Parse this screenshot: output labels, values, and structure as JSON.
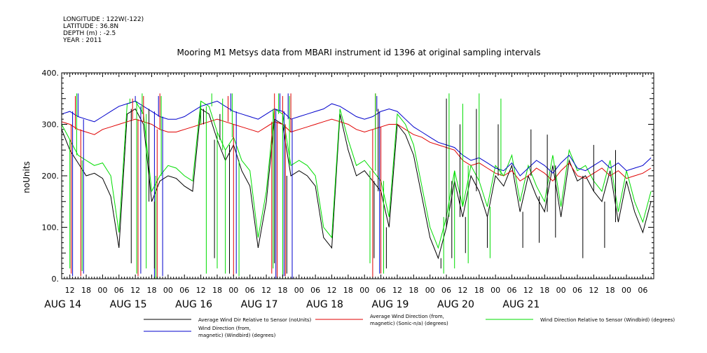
{
  "header": {
    "lines": [
      "LONGITUDE : 122W(-122)",
      "LATITUDE : 36.8N",
      "DEPTH (m) : -2.5",
      "YEAR : 2011"
    ]
  },
  "chart_data": {
    "type": "line",
    "title": "Mooring M1 Metsys data from MBARI instrument id 1396 at original sampling intervals",
    "ylabel": "noUnits",
    "xlabel": "",
    "ylim": [
      0,
      400
    ],
    "y_ticks": [
      0,
      100,
      200,
      300,
      400
    ],
    "y_tick_labels": [
      "0.",
      "100.",
      "200.",
      "300.",
      "400."
    ],
    "x_unit": "hours since 2011-08-14 00:00",
    "xlim": [
      9,
      226
    ],
    "hour_ticks": [
      {
        "h": 12,
        "label": "12"
      },
      {
        "h": 18,
        "label": "18"
      },
      {
        "h": 24,
        "label": "00"
      },
      {
        "h": 30,
        "label": "06"
      },
      {
        "h": 36,
        "label": "12"
      },
      {
        "h": 42,
        "label": "18"
      },
      {
        "h": 48,
        "label": "00"
      },
      {
        "h": 54,
        "label": "06"
      },
      {
        "h": 60,
        "label": "12"
      },
      {
        "h": 66,
        "label": "18"
      },
      {
        "h": 72,
        "label": "00"
      },
      {
        "h": 78,
        "label": "06"
      },
      {
        "h": 84,
        "label": "12"
      },
      {
        "h": 90,
        "label": "18"
      },
      {
        "h": 96,
        "label": "00"
      },
      {
        "h": 102,
        "label": "06"
      },
      {
        "h": 108,
        "label": "12"
      },
      {
        "h": 114,
        "label": "18"
      },
      {
        "h": 120,
        "label": "00"
      },
      {
        "h": 126,
        "label": "06"
      },
      {
        "h": 132,
        "label": "12"
      },
      {
        "h": 138,
        "label": "18"
      },
      {
        "h": 144,
        "label": "00"
      },
      {
        "h": 150,
        "label": "06"
      },
      {
        "h": 156,
        "label": "12"
      },
      {
        "h": 162,
        "label": "18"
      },
      {
        "h": 168,
        "label": "00"
      },
      {
        "h": 174,
        "label": "06"
      },
      {
        "h": 180,
        "label": "12"
      },
      {
        "h": 186,
        "label": "18"
      },
      {
        "h": 192,
        "label": "00"
      },
      {
        "h": 198,
        "label": "06"
      },
      {
        "h": 204,
        "label": "12"
      },
      {
        "h": 210,
        "label": "18"
      },
      {
        "h": 216,
        "label": "00"
      },
      {
        "h": 222,
        "label": "06"
      }
    ],
    "day_labels": [
      {
        "h": 12,
        "label": "AUG 14"
      },
      {
        "h": 36,
        "label": "AUG 15"
      },
      {
        "h": 60,
        "label": "AUG 16"
      },
      {
        "h": 84,
        "label": "AUG 17"
      },
      {
        "h": 108,
        "label": "AUG 18"
      },
      {
        "h": 132,
        "label": "AUG 19"
      },
      {
        "h": 156,
        "label": "AUG 20"
      },
      {
        "h": 180,
        "label": "AUG 21"
      }
    ],
    "series": [
      {
        "name": "Average Wind Dir Relative to Sensor (noUnits)",
        "color": "#000000",
        "x": [
          9,
          12,
          15,
          18,
          21,
          24,
          27,
          30,
          33,
          36,
          39,
          42,
          45,
          48,
          51,
          54,
          57,
          60,
          63,
          66,
          69,
          72,
          75,
          78,
          81,
          84,
          87,
          90,
          93,
          96,
          99,
          102,
          105,
          108,
          111,
          114,
          117,
          120,
          123,
          126,
          129,
          132,
          135,
          138,
          141,
          144,
          147,
          150,
          153,
          156,
          159,
          162,
          165,
          168,
          171,
          174,
          177,
          180,
          183,
          186,
          189,
          192,
          195,
          198,
          201,
          204,
          207,
          210,
          213,
          216,
          219,
          222,
          225
        ],
        "values": [
          290,
          250,
          225,
          200,
          205,
          195,
          160,
          60,
          320,
          330,
          300,
          150,
          190,
          200,
          195,
          180,
          170,
          330,
          320,
          270,
          230,
          260,
          210,
          180,
          60,
          150,
          310,
          300,
          200,
          210,
          200,
          180,
          80,
          60,
          320,
          250,
          200,
          210,
          190,
          170,
          100,
          300,
          280,
          240,
          160,
          80,
          40,
          100,
          190,
          120,
          200,
          170,
          120,
          200,
          180,
          220,
          130,
          200,
          160,
          130,
          220,
          120,
          230,
          190,
          200,
          170,
          150,
          210,
          110,
          190,
          130,
          90,
          150
        ]
      },
      {
        "name": "Average Wind Direction (from, magnetic) (Sonic-n/a) (degrees)",
        "color": "#e00000",
        "x": [
          9,
          12,
          15,
          18,
          21,
          24,
          27,
          30,
          33,
          36,
          39,
          42,
          45,
          48,
          51,
          54,
          57,
          60,
          63,
          66,
          69,
          72,
          75,
          78,
          81,
          84,
          87,
          90,
          93,
          96,
          99,
          102,
          105,
          108,
          111,
          114,
          117,
          120,
          123,
          126,
          129,
          132,
          135,
          138,
          141,
          144,
          147,
          150,
          153,
          156,
          159,
          162,
          165,
          168,
          171,
          174,
          177,
          180,
          183,
          186,
          189,
          192,
          195,
          198,
          201,
          204,
          207,
          210,
          213,
          216,
          219,
          222,
          225
        ],
        "values": [
          305,
          300,
          290,
          285,
          280,
          290,
          295,
          300,
          305,
          310,
          305,
          300,
          290,
          285,
          285,
          290,
          295,
          300,
          305,
          310,
          305,
          300,
          295,
          290,
          285,
          295,
          305,
          300,
          285,
          290,
          295,
          300,
          305,
          310,
          305,
          300,
          290,
          285,
          290,
          295,
          300,
          300,
          290,
          280,
          275,
          265,
          260,
          255,
          250,
          230,
          220,
          225,
          215,
          205,
          200,
          210,
          190,
          200,
          215,
          205,
          190,
          210,
          225,
          200,
          195,
          205,
          215,
          200,
          210,
          195,
          200,
          205,
          215
        ]
      },
      {
        "name": "Wind Direction Relative to Sensor (Windbird) (degrees)",
        "color": "#00dd00",
        "x": [
          9,
          12,
          15,
          18,
          21,
          24,
          27,
          30,
          33,
          36,
          39,
          42,
          45,
          48,
          51,
          54,
          57,
          60,
          63,
          66,
          69,
          72,
          75,
          78,
          81,
          84,
          87,
          90,
          93,
          96,
          99,
          102,
          105,
          108,
          111,
          114,
          117,
          120,
          123,
          126,
          129,
          132,
          135,
          138,
          141,
          144,
          147,
          150,
          153,
          156,
          159,
          162,
          165,
          168,
          171,
          174,
          177,
          180,
          183,
          186,
          189,
          192,
          195,
          198,
          201,
          204,
          207,
          210,
          213,
          216,
          219,
          222,
          225
        ],
        "values": [
          300,
          270,
          240,
          230,
          220,
          225,
          200,
          90,
          340,
          345,
          320,
          170,
          200,
          220,
          215,
          200,
          190,
          345,
          335,
          285,
          250,
          275,
          230,
          210,
          80,
          170,
          330,
          320,
          220,
          230,
          220,
          200,
          100,
          80,
          330,
          270,
          220,
          230,
          210,
          190,
          120,
          320,
          300,
          260,
          180,
          100,
          60,
          120,
          210,
          140,
          220,
          190,
          140,
          220,
          200,
          240,
          150,
          220,
          180,
          150,
          240,
          140,
          250,
          210,
          220,
          190,
          170,
          230,
          130,
          210,
          150,
          110,
          170
        ]
      },
      {
        "name": "Wind Direction (from, magnetic) (Windbird) (degrees)",
        "color": "#0000cc",
        "x": [
          9,
          12,
          15,
          18,
          21,
          24,
          27,
          30,
          33,
          36,
          39,
          42,
          45,
          48,
          51,
          54,
          57,
          60,
          63,
          66,
          69,
          72,
          75,
          78,
          81,
          84,
          87,
          90,
          93,
          96,
          99,
          102,
          105,
          108,
          111,
          114,
          117,
          120,
          123,
          126,
          129,
          132,
          135,
          138,
          141,
          144,
          147,
          150,
          153,
          156,
          159,
          162,
          165,
          168,
          171,
          174,
          177,
          180,
          183,
          186,
          189,
          192,
          195,
          198,
          201,
          204,
          207,
          210,
          213,
          216,
          219,
          222,
          225
        ],
        "values": [
          320,
          325,
          315,
          310,
          305,
          315,
          325,
          335,
          340,
          345,
          335,
          325,
          315,
          310,
          310,
          315,
          325,
          335,
          340,
          345,
          335,
          325,
          320,
          315,
          310,
          320,
          330,
          325,
          310,
          315,
          320,
          325,
          330,
          340,
          335,
          325,
          315,
          310,
          315,
          325,
          330,
          325,
          310,
          295,
          285,
          275,
          265,
          260,
          255,
          240,
          230,
          235,
          225,
          215,
          210,
          225,
          200,
          215,
          230,
          220,
          205,
          225,
          240,
          215,
          210,
          220,
          230,
          215,
          225,
          210,
          215,
          220,
          235
        ]
      }
    ],
    "spikes": [
      {
        "series": 1,
        "x": [
          12.5,
          14,
          16,
          35,
          37,
          39,
          44,
          45,
          70,
          72,
          86,
          87,
          88,
          90,
          91,
          93,
          123,
          124,
          126
        ],
        "values": [
          10,
          355,
          5,
          350,
          5,
          355,
          0,
          360,
          355,
          5,
          10,
          360,
          0,
          355,
          5,
          360,
          0,
          360,
          10
        ]
      },
      {
        "series": 3,
        "x": [
          13,
          15,
          17,
          36,
          38,
          43,
          44.5,
          46,
          71,
          73,
          87.5,
          89,
          90.5,
          92,
          93.5,
          124.5,
          125.5
        ],
        "values": [
          5,
          360,
          10,
          355,
          10,
          0,
          355,
          5,
          360,
          10,
          0,
          360,
          5,
          360,
          0,
          355,
          10
        ]
      },
      {
        "series": 2,
        "x": [
          12,
          14.5,
          16.5,
          34,
          36.5,
          38.5,
          40,
          43.5,
          45.5,
          60,
          62,
          64,
          66,
          68,
          69,
          71.5,
          74,
          86.5,
          88.5,
          90,
          92.5,
          122,
          124,
          127,
          149,
          151,
          153,
          156,
          158,
          162,
          166,
          170
        ],
        "values": [
          20,
          360,
          15,
          350,
          10,
          360,
          20,
          0,
          355,
          300,
          10,
          360,
          20,
          350,
          10,
          360,
          5,
          20,
          360,
          0,
          355,
          30,
          360,
          10,
          10,
          360,
          20,
          340,
          30,
          360,
          40,
          350
        ]
      },
      {
        "series": 0,
        "x": [
          34.5,
          41,
          43,
          61,
          65,
          67,
          70.5,
          87,
          91.5,
          123.5,
          125,
          128,
          148,
          150,
          152,
          155,
          157,
          161,
          165,
          169,
          178,
          181,
          184,
          187,
          190,
          200,
          204,
          208,
          212
        ],
        "values": [
          30,
          330,
          20,
          300,
          40,
          320,
          10,
          30,
          10,
          40,
          330,
          20,
          20,
          350,
          40,
          300,
          50,
          330,
          60,
          300,
          60,
          290,
          70,
          280,
          80,
          40,
          260,
          60,
          250
        ]
      }
    ],
    "legend": [
      {
        "label_lines": [
          "Average Wind Dir Relative to Sensor (noUnits)"
        ],
        "color": "#000000"
      },
      {
        "label_lines": [
          "Average Wind Direction (from,",
          "magnetic) (Sonic-n/a) (degrees)"
        ],
        "color": "#e00000"
      },
      {
        "label_lines": [
          "Wind Direction Relative to Sensor (Windbird) (degrees)"
        ],
        "color": "#00dd00"
      },
      {
        "label_lines": [
          "Wind Direction (from,",
          "magnetic) (Windbird) (degrees)"
        ],
        "color": "#0000cc"
      }
    ],
    "legend_placement": "bottom",
    "grid": false
  }
}
